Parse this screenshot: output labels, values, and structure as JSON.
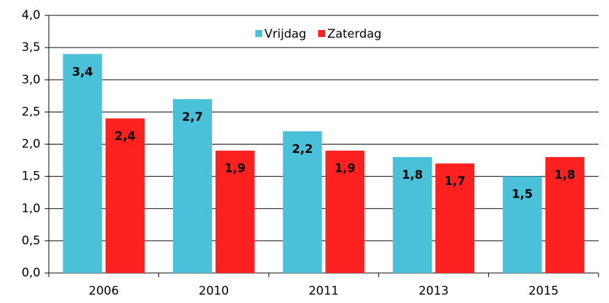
{
  "chart_data": {
    "type": "bar",
    "categories": [
      "2006",
      "2010",
      "2011",
      "2013",
      "2015"
    ],
    "series": [
      {
        "name": "Vrijdag",
        "color": "#4bc0d9",
        "values": [
          3.4,
          2.7,
          2.2,
          1.8,
          1.5
        ],
        "value_labels": [
          "3,4",
          "2,7",
          "2,2",
          "1,8",
          "1,5"
        ]
      },
      {
        "name": "Zaterdag",
        "color": "#ff2020",
        "values": [
          2.4,
          1.9,
          1.9,
          1.7,
          1.8
        ],
        "value_labels": [
          "2,4",
          "1,9",
          "1,9",
          "1,7",
          "1,8"
        ]
      }
    ],
    "ylim": [
      0,
      4
    ],
    "yticks": [
      {
        "value": 0,
        "label": "0,0"
      },
      {
        "value": 0.5,
        "label": "0,5"
      },
      {
        "value": 1,
        "label": "1,0"
      },
      {
        "value": 1.5,
        "label": "1,5"
      },
      {
        "value": 2,
        "label": "2,0"
      },
      {
        "value": 2.5,
        "label": "2,5"
      },
      {
        "value": 3,
        "label": "3,0"
      },
      {
        "value": 3.5,
        "label": "3,5"
      },
      {
        "value": 4,
        "label": "4,0"
      }
    ],
    "grid": true,
    "legend": "top"
  }
}
